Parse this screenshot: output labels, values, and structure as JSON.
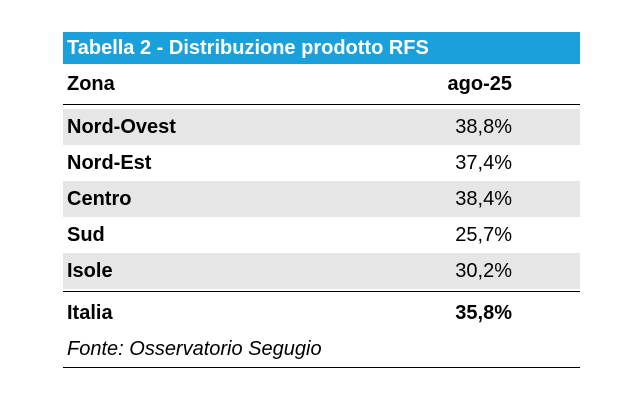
{
  "title": "Tabella 2 - Distribuzione prodotto RFS",
  "columns": {
    "zone": "Zona",
    "value": "ago-25"
  },
  "rows": [
    {
      "zone": "Nord-Ovest",
      "value": "38,8%"
    },
    {
      "zone": "Nord-Est",
      "value": "37,4%"
    },
    {
      "zone": "Centro",
      "value": "38,4%"
    },
    {
      "zone": "Sud",
      "value": "25,7%"
    },
    {
      "zone": "Isole",
      "value": "30,2%"
    }
  ],
  "total": {
    "zone": "Italia",
    "value": "35,8%"
  },
  "source": "Fonte: Osservatorio Segugio",
  "colors": {
    "title_bg": "#1aa1dc",
    "title_text": "#ffffff",
    "row_shade": "#e6e6e6"
  }
}
